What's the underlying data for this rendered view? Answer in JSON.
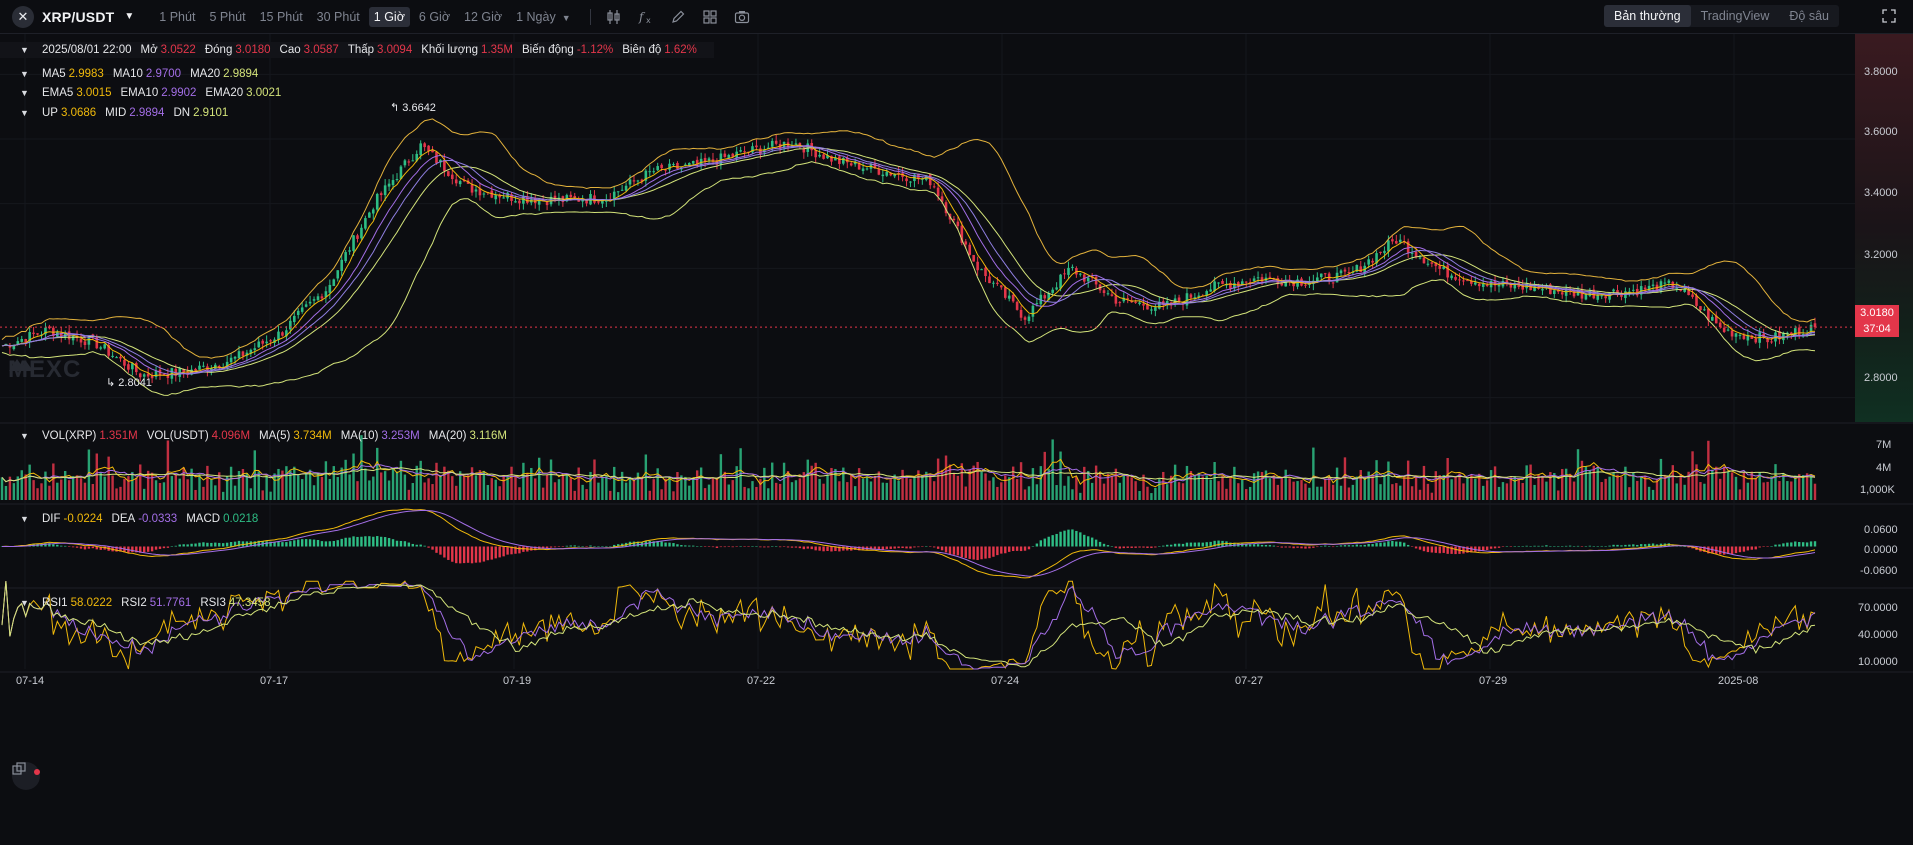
{
  "toolbar": {
    "logo_glyph": "✕",
    "symbol": "XRP/USDT",
    "intervals": [
      "1 Phút",
      "5 Phút",
      "15 Phút",
      "30 Phút",
      "1 Giờ",
      "6 Giờ",
      "12 Giờ",
      "1 Ngày"
    ],
    "active_interval": "1 Giờ",
    "views": [
      "Bản thường",
      "TradingView",
      "Độ sâu"
    ],
    "active_view": "Bản thường",
    "tool_icons": [
      "candles-icon",
      "indicator-fx-icon",
      "pencil-icon",
      "layout-grid-icon",
      "camera-icon"
    ]
  },
  "ohlc": {
    "date": "2025/08/01 22:00",
    "open_label": "Mở",
    "open": "3.0522",
    "close_label": "Đóng",
    "close": "3.0180",
    "high_label": "Cao",
    "high": "3.0587",
    "low_label": "Thấp",
    "low": "3.0094",
    "volume_label": "Khối lượng",
    "volume": "1.35M",
    "change_label": "Biến động",
    "change": "-1.12%",
    "amplitude_label": "Biên độ",
    "amplitude": "1.62%"
  },
  "ma": {
    "ma5_label": "MA5",
    "ma5": "2.9983",
    "ma10_label": "MA10",
    "ma10": "2.9700",
    "ma20_label": "MA20",
    "ma20": "2.9894"
  },
  "ema": {
    "ema5_label": "EMA5",
    "ema5": "3.0015",
    "ema10_label": "EMA10",
    "ema10": "2.9902",
    "ema20_label": "EMA20",
    "ema20": "3.0021"
  },
  "boll": {
    "up_label": "UP",
    "up": "3.0686",
    "mid_label": "MID",
    "mid": "2.9894",
    "dn_label": "DN",
    "dn": "2.9101"
  },
  "vol": {
    "xrp_label": "VOL(XRP)",
    "xrp": "1.351M",
    "usdt_label": "VOL(USDT)",
    "usdt": "4.096M",
    "ma5_label": "MA(5)",
    "ma5": "3.734M",
    "ma10_label": "MA(10)",
    "ma10": "3.253M",
    "ma20_label": "MA(20)",
    "ma20": "3.116M",
    "axis": [
      "7M",
      "4M",
      "1,000K"
    ]
  },
  "macd": {
    "dif_label": "DIF",
    "dif": "-0.0224",
    "dea_label": "DEA",
    "dea": "-0.0333",
    "macd_label": "MACD",
    "macd": "0.0218",
    "axis": [
      "0.0600",
      "0.0000",
      "-0.0600"
    ]
  },
  "rsi": {
    "rsi1_label": "RSI1",
    "rsi1": "58.0222",
    "rsi2_label": "RSI2",
    "rsi2": "51.7761",
    "rsi3_label": "RSI3",
    "rsi3": "47.3458",
    "axis": [
      "70.0000",
      "40.0000",
      "10.0000"
    ]
  },
  "price_axis": [
    "3.8000",
    "3.6000",
    "3.4000",
    "3.2000",
    "2.8000"
  ],
  "last_price": "3.0180",
  "countdown": "37:04",
  "high_marker": "3.6642",
  "low_marker": "2.8041",
  "watermark": "MEXC",
  "x_axis": [
    "07-14",
    "07-17",
    "07-19",
    "07-22",
    "07-24",
    "07-27",
    "07-29",
    "2025-08"
  ],
  "colors": {
    "up": "#2ebd85",
    "down": "#e3364a",
    "ma5": "#f0b90b",
    "ma10": "#a36ee6",
    "ma20": "#d3e37a",
    "ema5": "#f0b90b",
    "ema10": "#a36ee6",
    "ema20": "#d3e37a",
    "boll": "#e3b23c"
  },
  "chart_data": {
    "type": "candlestick",
    "title": "XRP/USDT",
    "price_range": [
      2.7,
      3.9
    ],
    "price_ticks": [
      3.8,
      3.6,
      3.4,
      3.2,
      2.8
    ],
    "x_ticks": [
      "07-14",
      "07-17",
      "07-19",
      "07-22",
      "07-24",
      "07-27",
      "07-29",
      "2025-08"
    ],
    "trend_close": [
      2.96,
      3.01,
      2.97,
      2.87,
      2.88,
      2.92,
      3.0,
      3.14,
      3.4,
      3.58,
      3.45,
      3.42,
      3.41,
      3.42,
      3.5,
      3.52,
      3.56,
      3.59,
      3.53,
      3.5,
      3.47,
      3.2,
      3.05,
      3.2,
      3.1,
      3.08,
      3.14,
      3.17,
      3.16,
      3.18,
      3.29,
      3.19,
      3.15,
      3.14,
      3.12,
      3.13,
      3.15,
      3.01,
      2.98,
      3.02
    ],
    "highest": 3.6642,
    "lowest": 2.8041,
    "last": 3.018,
    "volume_range": [
      0,
      8
    ],
    "macd_range": [
      -0.12,
      0.12
    ],
    "rsi_range": [
      0,
      90
    ]
  }
}
